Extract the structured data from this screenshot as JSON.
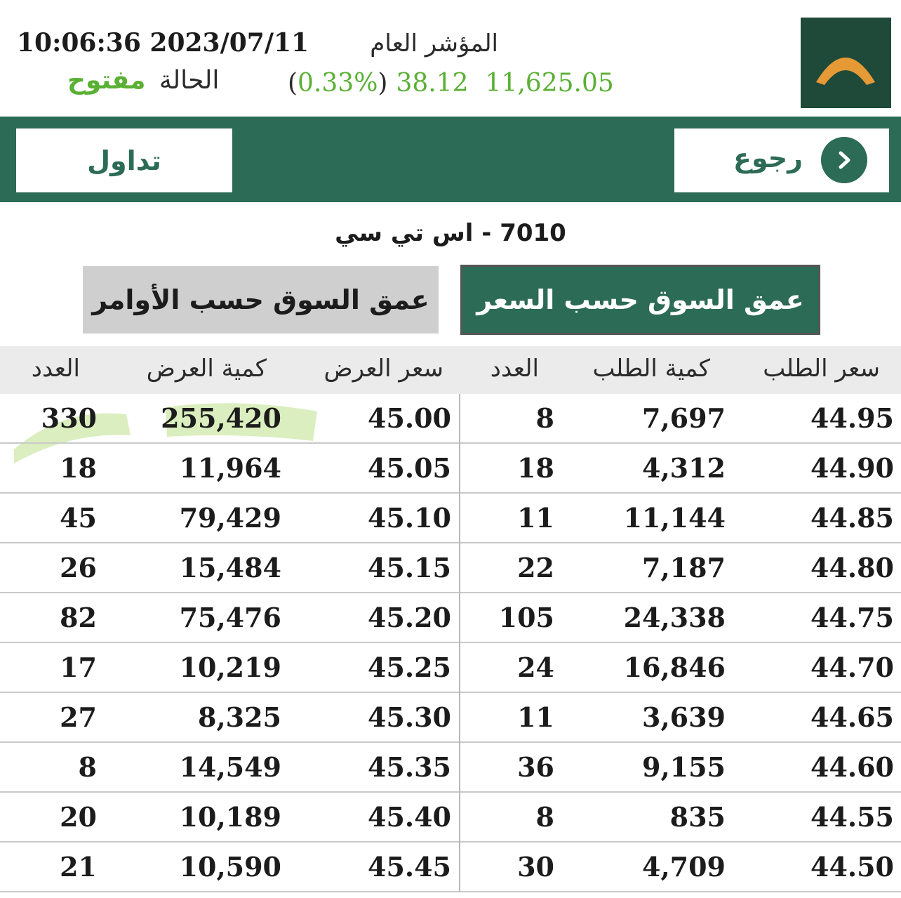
{
  "header": {
    "datetime": "10:06:36 2023/07/11",
    "status_label": "الحالة",
    "status_value": "مفتوح",
    "index_title": "المؤشر العام",
    "index_value": "11,625.05",
    "index_change": "38.12",
    "index_change_pct": "0.33%"
  },
  "toolbar": {
    "trade_label": "تداول",
    "back_label": "رجوع"
  },
  "stock_title": "7010 - اس تي سي",
  "tabs": {
    "by_orders": "عمق السوق حسب الأوامر",
    "by_price": "عمق السوق حسب السعر"
  },
  "table": {
    "columns": [
      "سعر الطلب",
      "كمية الطلب",
      "العدد",
      "سعر العرض",
      "كمية العرض",
      "العدد"
    ],
    "rows": [
      {
        "bid_price": "44.95",
        "bid_qty": "7,697",
        "bid_count": "8",
        "ask_price": "45.00",
        "ask_qty": "255,420",
        "ask_count": "330"
      },
      {
        "bid_price": "44.90",
        "bid_qty": "4,312",
        "bid_count": "18",
        "ask_price": "45.05",
        "ask_qty": "11,964",
        "ask_count": "18"
      },
      {
        "bid_price": "44.85",
        "bid_qty": "11,144",
        "bid_count": "11",
        "ask_price": "45.10",
        "ask_qty": "79,429",
        "ask_count": "45"
      },
      {
        "bid_price": "44.80",
        "bid_qty": "7,187",
        "bid_count": "22",
        "ask_price": "45.15",
        "ask_qty": "15,484",
        "ask_count": "26"
      },
      {
        "bid_price": "44.75",
        "bid_qty": "24,338",
        "bid_count": "105",
        "ask_price": "45.20",
        "ask_qty": "75,476",
        "ask_count": "82"
      },
      {
        "bid_price": "44.70",
        "bid_qty": "16,846",
        "bid_count": "24",
        "ask_price": "45.25",
        "ask_qty": "10,219",
        "ask_count": "17"
      },
      {
        "bid_price": "44.65",
        "bid_qty": "3,639",
        "bid_count": "11",
        "ask_price": "45.30",
        "ask_qty": "8,325",
        "ask_count": "27"
      },
      {
        "bid_price": "44.60",
        "bid_qty": "9,155",
        "bid_count": "36",
        "ask_price": "45.35",
        "ask_qty": "14,549",
        "ask_count": "8"
      },
      {
        "bid_price": "44.55",
        "bid_qty": "835",
        "bid_count": "8",
        "ask_price": "45.40",
        "ask_qty": "10,189",
        "ask_count": "20"
      },
      {
        "bid_price": "44.50",
        "bid_qty": "4,709",
        "bid_count": "30",
        "ask_price": "45.45",
        "ask_qty": "10,590",
        "ask_count": "21"
      }
    ]
  },
  "colors": {
    "brand_green": "#2c6b55",
    "logo_bg": "#1f4a3a",
    "logo_arch": "#e59a35",
    "positive": "#5ab034",
    "highlight_marker": "#cfe8a9"
  },
  "icons": {
    "logo": "tadawul-arch-logo",
    "back": "chevron-right-circle-icon"
  }
}
